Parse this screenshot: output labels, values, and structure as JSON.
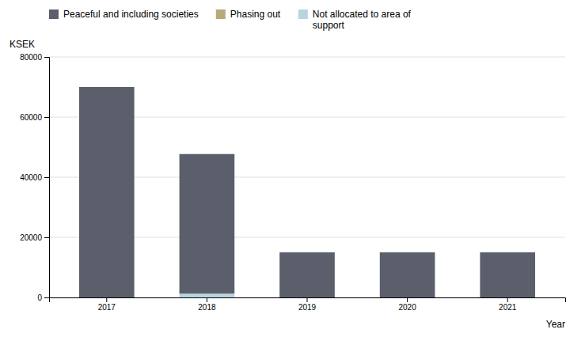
{
  "chart_data": {
    "type": "bar",
    "stacked": true,
    "categories": [
      "2017",
      "2018",
      "2019",
      "2020",
      "2021"
    ],
    "series": [
      {
        "name": "Peaceful and including societies",
        "color": "#5a5f6b",
        "values": [
          70000,
          46500,
          15000,
          15000,
          15000
        ]
      },
      {
        "name": "Phasing out",
        "color": "#b5aa7a",
        "values": [
          0,
          0,
          0,
          0,
          0
        ]
      },
      {
        "name": "Not allocated to area of\nsupport",
        "color": "#b8d4df",
        "values": [
          0,
          1200,
          0,
          0,
          0
        ]
      }
    ],
    "ylabel": "KSEK",
    "xlabel": "Year",
    "ylim": [
      0,
      80000
    ],
    "yticks": [
      0,
      20000,
      40000,
      60000,
      80000
    ],
    "grid": true,
    "legend": "top"
  }
}
